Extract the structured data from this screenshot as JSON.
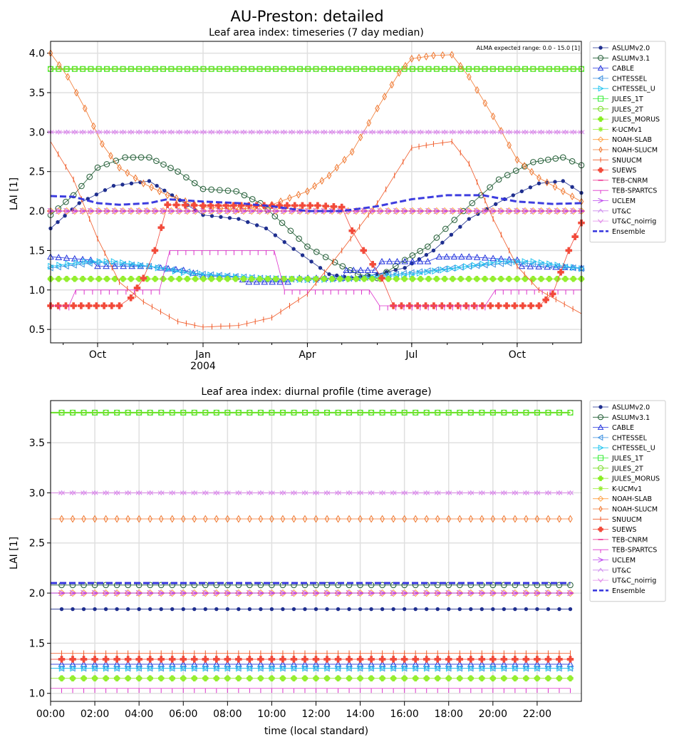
{
  "figure": {
    "title": "AU-Preston: detailed"
  },
  "colors": {
    "ASLUMv2.0": "#1f2f8f",
    "ASLUMv3.1": "#1e5a32",
    "CABLE": "#2233dd",
    "CHTESSEL": "#3b8fe0",
    "CHTESSEL_U": "#22c5f0",
    "JULES_1T": "#33ee33",
    "JULES_2T": "#77dd22",
    "JULES_MORUS": "#88ee22",
    "K-UCMv1": "#99ee33",
    "NOAH-SLAB": "#ffa040",
    "NOAH-SLUCM": "#f07830",
    "SNUUCM": "#f05a28",
    "SUEWS": "#f24a3a",
    "TEB-CNRM": "#ee2288",
    "TEB-SPARTCS": "#dd33cc",
    "UCLEM": "#bb44ee",
    "UT&C": "#cc88ee",
    "UT&C_noirrig": "#e088e8",
    "Ensemble": "#3333dd"
  },
  "chart_data": [
    {
      "type": "line",
      "title": "Leaf area index: timeseries (7 day median)",
      "xlabel": "",
      "ylabel": "LAI [1]",
      "annotation": "ALMA expected range: 0.0 - 15.0 [1]",
      "x_range": [
        "2003-08-21",
        "2004-11-26"
      ],
      "x_ticks": [
        {
          "date": "2003-10-01",
          "label": "Oct",
          "sublabel": ""
        },
        {
          "date": "2004-01-01",
          "label": "Jan",
          "sublabel": "2004"
        },
        {
          "date": "2004-04-01",
          "label": "Apr",
          "sublabel": ""
        },
        {
          "date": "2004-07-01",
          "label": "Jul",
          "sublabel": ""
        },
        {
          "date": "2004-10-01",
          "label": "Oct",
          "sublabel": ""
        }
      ],
      "ylim": [
        0.33,
        4.15
      ],
      "y_ticks": [
        "0.5",
        "1.0",
        "1.5",
        "2.0",
        "2.5",
        "3.0",
        "3.5",
        "4.0"
      ],
      "grid": true,
      "legend_position": "outside-right",
      "series": [
        {
          "name": "ASLUMv2.0",
          "x": [
            "2003-08-21",
            "2003-09-15",
            "2003-10-15",
            "2003-11-15",
            "2003-12-05",
            "2004-01-01",
            "2004-02-01",
            "2004-02-25",
            "2004-03-20",
            "2004-04-20",
            "2004-05-10",
            "2004-06-01",
            "2004-06-25",
            "2004-07-20",
            "2004-08-20",
            "2004-09-20",
            "2004-10-20",
            "2004-11-10",
            "2004-11-26"
          ],
          "y": [
            1.78,
            2.1,
            2.32,
            2.38,
            2.2,
            1.95,
            1.9,
            1.78,
            1.52,
            1.2,
            1.15,
            1.2,
            1.28,
            1.5,
            1.9,
            2.15,
            2.35,
            2.38,
            2.23
          ]
        },
        {
          "name": "ASLUMv3.1",
          "x": [
            "2003-08-21",
            "2003-09-10",
            "2003-10-01",
            "2003-10-25",
            "2003-11-15",
            "2003-12-10",
            "2004-01-01",
            "2004-01-30",
            "2004-02-20",
            "2004-03-10",
            "2004-04-01",
            "2004-04-25",
            "2004-05-15",
            "2004-06-01",
            "2004-06-25",
            "2004-07-15",
            "2004-08-15",
            "2004-09-15",
            "2004-10-15",
            "2004-11-10",
            "2004-11-26"
          ],
          "y": [
            1.95,
            2.2,
            2.55,
            2.68,
            2.68,
            2.5,
            2.28,
            2.25,
            2.1,
            1.85,
            1.55,
            1.35,
            1.2,
            1.15,
            1.38,
            1.55,
            2.0,
            2.4,
            2.62,
            2.68,
            2.58
          ]
        },
        {
          "name": "CABLE",
          "x": [
            "2003-08-21",
            "2003-09-25",
            "2003-10-01",
            "2003-11-15",
            "2003-11-25",
            "2003-12-15",
            "2004-01-01",
            "2004-01-30",
            "2004-02-10",
            "2004-03-15",
            "2004-03-25",
            "2004-05-01",
            "2004-05-05",
            "2004-05-30",
            "2004-06-05",
            "2004-07-15",
            "2004-07-25",
            "2004-08-20",
            "2004-10-01",
            "2004-10-05",
            "2004-11-26"
          ],
          "y": [
            1.42,
            1.38,
            1.3,
            1.3,
            1.28,
            1.25,
            1.18,
            1.16,
            1.1,
            1.1,
            1.15,
            1.15,
            1.25,
            1.25,
            1.36,
            1.36,
            1.42,
            1.42,
            1.38,
            1.3,
            1.28
          ]
        },
        {
          "name": "CHTESSEL",
          "x": [
            "2003-08-21",
            "2003-10-01",
            "2003-11-15",
            "2004-01-01",
            "2004-02-20",
            "2004-04-01",
            "2004-05-15",
            "2004-07-01",
            "2004-08-20",
            "2004-10-01",
            "2004-11-26"
          ],
          "y": [
            1.28,
            1.35,
            1.3,
            1.2,
            1.15,
            1.13,
            1.15,
            1.22,
            1.3,
            1.35,
            1.27
          ]
        },
        {
          "name": "CHTESSEL_U",
          "x": [
            "2003-08-21",
            "2003-09-20",
            "2003-10-15",
            "2003-11-15",
            "2003-12-15",
            "2004-01-15",
            "2004-02-20",
            "2004-04-01",
            "2004-05-15",
            "2004-07-01",
            "2004-08-10",
            "2004-09-15",
            "2004-10-15",
            "2004-11-26"
          ],
          "y": [
            1.3,
            1.36,
            1.36,
            1.3,
            1.22,
            1.18,
            1.15,
            1.13,
            1.14,
            1.2,
            1.28,
            1.36,
            1.36,
            1.27
          ]
        },
        {
          "name": "JULES_1T",
          "x": [
            "2003-08-21",
            "2004-11-26"
          ],
          "y": [
            3.8,
            3.8
          ]
        },
        {
          "name": "JULES_2T",
          "x": [
            "2003-08-21",
            "2004-11-26"
          ],
          "y": [
            3.8,
            3.8
          ]
        },
        {
          "name": "JULES_MORUS",
          "x": [
            "2003-08-21",
            "2004-11-26"
          ],
          "y": [
            1.14,
            1.14
          ]
        },
        {
          "name": "K-UCMv1",
          "x": [
            "2003-08-21",
            "2004-11-26"
          ],
          "y": [
            1.14,
            1.14
          ]
        },
        {
          "name": "NOAH-SLAB",
          "x": [
            "2003-08-21",
            "2004-11-26"
          ],
          "y": [
            2.0,
            2.0
          ]
        },
        {
          "name": "NOAH-SLUCM",
          "x": [
            "2003-08-21",
            "2003-09-05",
            "2003-09-20",
            "2003-10-05",
            "2003-10-20",
            "2003-11-10",
            "2003-12-01",
            "2004-01-01",
            "2004-02-01",
            "2004-03-01",
            "2004-04-01",
            "2004-04-20",
            "2004-05-10",
            "2004-06-01",
            "2004-06-20",
            "2004-07-01",
            "2004-07-20",
            "2004-08-05",
            "2004-08-20",
            "2004-09-10",
            "2004-10-01",
            "2004-10-20",
            "2004-11-10",
            "2004-11-26"
          ],
          "y": [
            4.0,
            3.7,
            3.3,
            2.85,
            2.55,
            2.35,
            2.2,
            2.05,
            2.02,
            2.08,
            2.25,
            2.45,
            2.75,
            3.3,
            3.75,
            3.93,
            3.97,
            3.98,
            3.7,
            3.2,
            2.65,
            2.42,
            2.25,
            2.12
          ]
        },
        {
          "name": "SNUUCM",
          "x": [
            "2003-08-21",
            "2003-09-10",
            "2003-10-01",
            "2003-10-20",
            "2003-11-10",
            "2003-12-10",
            "2004-01-01",
            "2004-02-01",
            "2004-03-01",
            "2004-04-01",
            "2004-05-01",
            "2004-06-01",
            "2004-07-01",
            "2004-07-20",
            "2004-08-05",
            "2004-08-20",
            "2004-09-10",
            "2004-10-01",
            "2004-10-20",
            "2004-11-26"
          ],
          "y": [
            2.88,
            2.4,
            1.65,
            1.1,
            0.85,
            0.6,
            0.53,
            0.55,
            0.65,
            0.95,
            1.5,
            2.1,
            2.8,
            2.85,
            2.88,
            2.6,
            1.9,
            1.3,
            1.0,
            0.7
          ]
        },
        {
          "name": "SUEWS",
          "x": [
            "2003-08-21",
            "2003-10-20",
            "2003-10-30",
            "2003-11-10",
            "2003-11-20",
            "2003-12-01",
            "2004-01-01",
            "2004-03-01",
            "2004-04-10",
            "2004-05-01",
            "2004-05-10",
            "2004-05-20",
            "2004-06-05",
            "2004-06-15",
            "2004-10-20",
            "2004-11-01",
            "2004-11-15",
            "2004-11-26"
          ],
          "y": [
            0.8,
            0.8,
            0.9,
            1.15,
            1.5,
            2.08,
            2.07,
            2.07,
            2.07,
            2.05,
            1.75,
            1.5,
            1.15,
            0.8,
            0.8,
            0.95,
            1.5,
            1.85
          ]
        },
        {
          "name": "TEB-CNRM",
          "x": [
            "2003-08-21",
            "2004-11-26"
          ],
          "y": [
            2.0,
            2.0
          ]
        },
        {
          "name": "TEB-SPARTCS",
          "x": [
            "2003-08-21",
            "2003-09-06",
            "2003-09-12",
            "2003-11-24",
            "2003-12-03",
            "2004-03-03",
            "2004-03-12",
            "2004-05-25",
            "2004-06-03",
            "2004-09-03",
            "2004-09-12",
            "2004-11-26"
          ],
          "y": [
            0.8,
            0.8,
            1.0,
            1.0,
            1.5,
            1.5,
            1.0,
            1.0,
            0.8,
            0.8,
            1.0,
            1.0
          ]
        },
        {
          "name": "UCLEM",
          "x": [
            "2003-08-21",
            "2004-11-26"
          ],
          "y": [
            2.0,
            2.0
          ]
        },
        {
          "name": "UT&C",
          "x": [
            "2003-08-21",
            "2004-11-26"
          ],
          "y": [
            3.0,
            3.0
          ]
        },
        {
          "name": "UT&C_noirrig",
          "x": [
            "2003-08-21",
            "2004-11-26"
          ],
          "y": [
            3.0,
            3.0
          ]
        },
        {
          "name": "Ensemble",
          "x": [
            "2003-08-21",
            "2003-09-10",
            "2003-10-01",
            "2003-10-20",
            "2003-11-15",
            "2003-12-01",
            "2004-01-01",
            "2004-02-01",
            "2004-03-01",
            "2004-04-01",
            "2004-05-01",
            "2004-06-01",
            "2004-07-01",
            "2004-08-01",
            "2004-09-01",
            "2004-10-01",
            "2004-11-01",
            "2004-11-26"
          ],
          "y": [
            2.19,
            2.18,
            2.1,
            2.08,
            2.1,
            2.15,
            2.12,
            2.1,
            2.06,
            2.0,
            2.0,
            2.06,
            2.15,
            2.2,
            2.2,
            2.12,
            2.09,
            2.1
          ]
        }
      ]
    },
    {
      "type": "line",
      "title": "Leaf area index: diurnal profile (time average)",
      "xlabel": "time (local standard)",
      "ylabel": "LAI [1]",
      "xlim": [
        0,
        24
      ],
      "x_ticks": [
        "00:00",
        "02:00",
        "04:00",
        "06:00",
        "08:00",
        "10:00",
        "12:00",
        "14:00",
        "16:00",
        "18:00",
        "20:00",
        "22:00"
      ],
      "ylim": [
        0.92,
        3.92
      ],
      "y_ticks": [
        "1.0",
        "1.5",
        "2.0",
        "2.5",
        "3.0",
        "3.5"
      ],
      "grid": true,
      "legend_position": "outside-right",
      "series": [
        {
          "name": "ASLUMv2.0",
          "value": 1.84
        },
        {
          "name": "ASLUMv3.1",
          "value": 2.08
        },
        {
          "name": "CABLE",
          "value": 1.29
        },
        {
          "name": "CHTESSEL",
          "value": 1.25
        },
        {
          "name": "CHTESSEL_U",
          "value": 1.25
        },
        {
          "name": "JULES_1T",
          "value": 3.8
        },
        {
          "name": "JULES_2T",
          "value": 3.8
        },
        {
          "name": "JULES_MORUS",
          "value": 1.15
        },
        {
          "name": "K-UCMv1",
          "value": 1.15
        },
        {
          "name": "NOAH-SLAB",
          "value": 2.0
        },
        {
          "name": "NOAH-SLUCM",
          "value": 2.74
        },
        {
          "name": "SNUUCM",
          "value": 1.4
        },
        {
          "name": "SUEWS",
          "value": 1.34
        },
        {
          "name": "TEB-CNRM",
          "value": 2.0
        },
        {
          "name": "TEB-SPARTCS",
          "value": 1.05
        },
        {
          "name": "UCLEM",
          "value": 2.0
        },
        {
          "name": "UT&C",
          "value": 3.0
        },
        {
          "name": "UT&C_noirrig",
          "value": 3.0
        },
        {
          "name": "Ensemble",
          "value": 2.1
        }
      ]
    }
  ]
}
